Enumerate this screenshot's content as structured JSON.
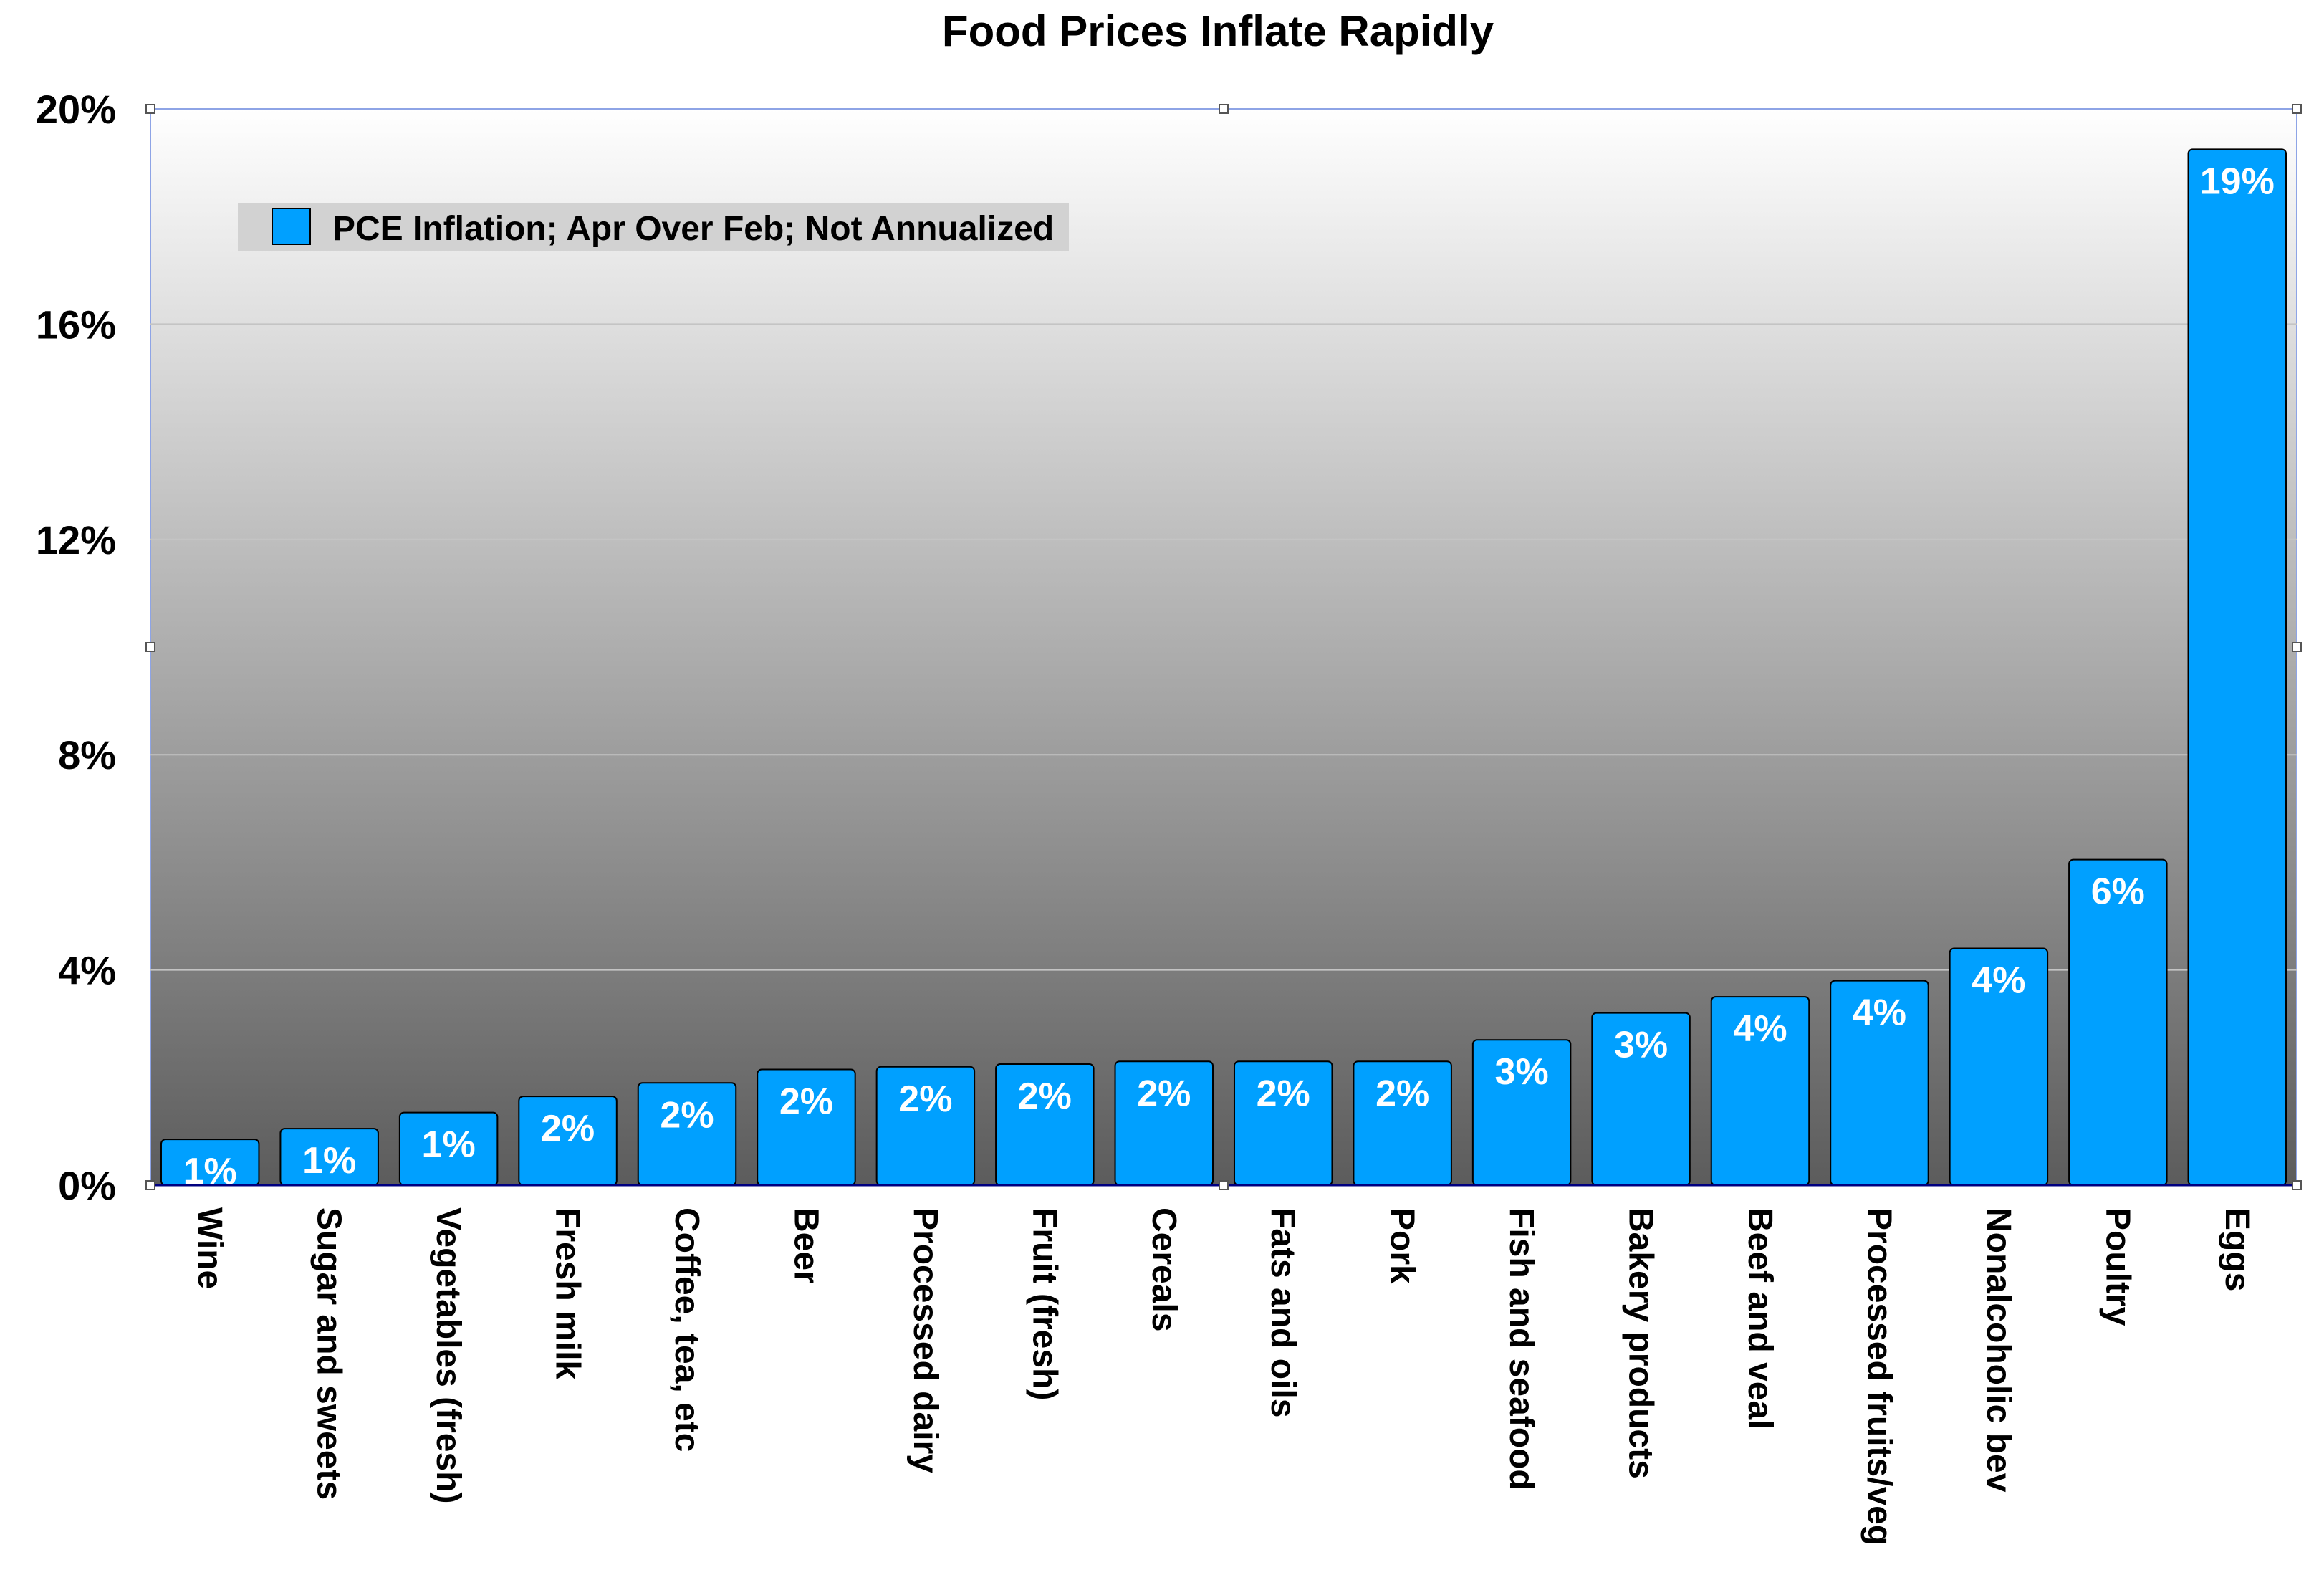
{
  "chart_data": {
    "type": "bar",
    "title": "Food Prices Inflate Rapidly",
    "xlabel": "",
    "ylabel": "",
    "ylim": [
      0,
      20
    ],
    "y_ticks": [
      0,
      4,
      8,
      12,
      16,
      20
    ],
    "y_tick_labels": [
      "0%",
      "4%",
      "8%",
      "12%",
      "16%",
      "20%"
    ],
    "grid": true,
    "legend_position": "top-left",
    "categories": [
      "Wine",
      "Sugar and sweets",
      "Vegetables (fresh)",
      "Fresh milk",
      "Coffee, tea, etc",
      "Beer",
      "Processed dairy",
      "Fruit (fresh)",
      "Cereals",
      "Fats and oils",
      "Pork",
      "Fish and seafood",
      "Bakery products",
      "Beef and veal",
      "Processed fruits/veg",
      "Nonalcoholic bev",
      "Poultry",
      "Eggs"
    ],
    "series": [
      {
        "name": "PCE Inflation; Apr Over Feb; Not Annualized",
        "color": "#00a0ff",
        "values": [
          0.85,
          1.05,
          1.35,
          1.65,
          1.9,
          2.15,
          2.2,
          2.25,
          2.3,
          2.3,
          2.3,
          2.7,
          3.2,
          3.5,
          3.8,
          4.4,
          6.05,
          19.25
        ],
        "data_labels": [
          "1%",
          "1%",
          "1%",
          "2%",
          "2%",
          "2%",
          "2%",
          "2%",
          "2%",
          "2%",
          "2%",
          "3%",
          "3%",
          "4%",
          "4%",
          "4%",
          "6%",
          "19%"
        ]
      }
    ]
  }
}
